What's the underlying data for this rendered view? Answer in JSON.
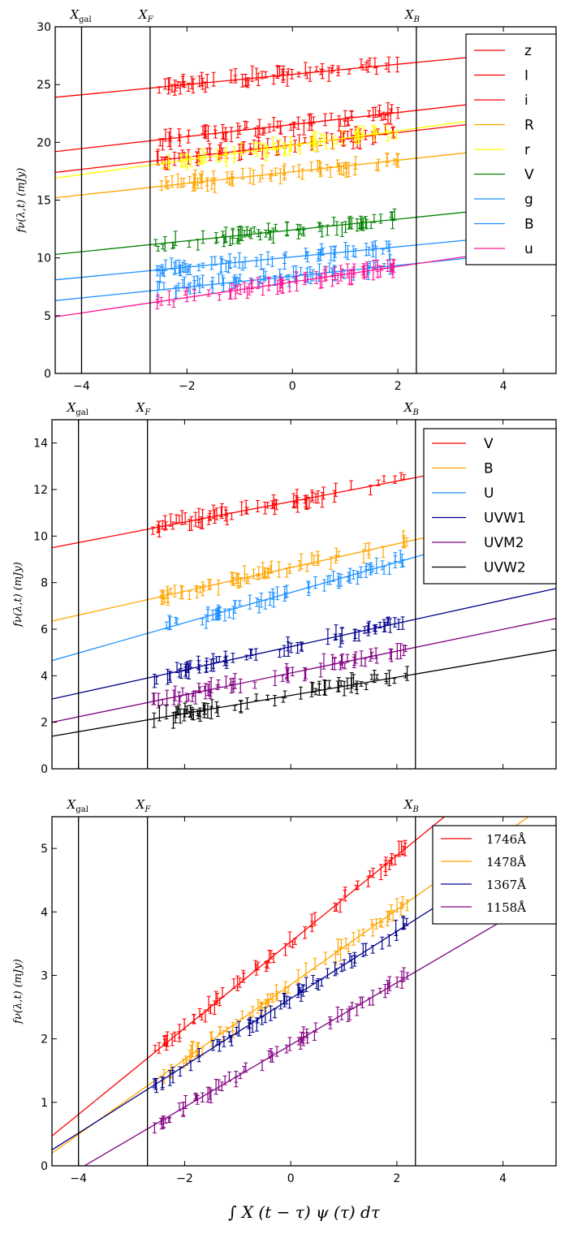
{
  "chart_data": [
    {
      "type": "line",
      "ylabel": "f_ν(λ,t) (mJy)",
      "xlim": [
        -4.5,
        5
      ],
      "ylim": [
        0,
        30
      ],
      "xticks": [
        "−4",
        "−2",
        "0",
        "2",
        "4"
      ],
      "yticks": [
        "0",
        "5",
        "10",
        "15",
        "20",
        "25",
        "30"
      ],
      "vlines": [
        {
          "x": -4.0,
          "label": "X_gal"
        },
        {
          "x": -2.7,
          "label": "X_F"
        },
        {
          "x": 2.35,
          "label": "X_B"
        }
      ],
      "legend_position": "top-right",
      "series": [
        {
          "name": "z",
          "color": "#ff0000",
          "y_at_xmin": 23.9,
          "slope": 0.44,
          "data_x": [
            -2.6,
            2.0
          ],
          "data_y": [
            24.8,
            27.0
          ]
        },
        {
          "name": "I",
          "color": "#ff0000",
          "y_at_xmin": 19.2,
          "slope": 0.52,
          "data_x": [
            -2.6,
            2.0
          ],
          "data_y": [
            20.0,
            22.6
          ]
        },
        {
          "name": "i",
          "color": "#ff0000",
          "y_at_xmin": 17.4,
          "slope": 0.53,
          "data_x": [
            -2.6,
            2.0
          ],
          "data_y": [
            18.3,
            20.9
          ]
        },
        {
          "name": "R",
          "color": "#ffa500",
          "y_at_xmin": 15.2,
          "slope": 0.5,
          "data_x": [
            -2.6,
            2.0
          ],
          "data_y": [
            16.2,
            19.7
          ]
        },
        {
          "name": "r",
          "color": "#ffff00",
          "y_at_xmin": 16.9,
          "slope": 0.63,
          "data_x": [
            -2.6,
            2.0
          ],
          "data_y": [
            17.9,
            21.3
          ]
        },
        {
          "name": "V",
          "color": "#008000",
          "y_at_xmin": 10.3,
          "slope": 0.47,
          "data_x": [
            -2.6,
            2.0
          ],
          "data_y": [
            11.3,
            14.4
          ]
        },
        {
          "name": "g",
          "color": "#1e90ff",
          "y_at_xmin": 8.1,
          "slope": 0.44,
          "data_x": [
            -2.6,
            2.0
          ],
          "data_y": [
            9.0,
            11.9
          ]
        },
        {
          "name": "B",
          "color": "#1e90ff",
          "y_at_xmin": 6.3,
          "slope": 0.47,
          "data_x": [
            -2.6,
            2.0
          ],
          "data_y": [
            7.3,
            10.4
          ]
        },
        {
          "name": "u",
          "color": "#ff1493",
          "y_at_xmin": 4.9,
          "slope": 0.67,
          "data_x": [
            -2.6,
            2.0
          ],
          "data_y": [
            6.6,
            10.3
          ]
        }
      ]
    },
    {
      "type": "line",
      "ylabel": "f_ν(λ,t) (mJy)",
      "xlim": [
        -4.5,
        5
      ],
      "ylim": [
        0,
        15
      ],
      "xticks": [],
      "yticks": [
        "0",
        "2",
        "4",
        "6",
        "8",
        "10",
        "12",
        "14"
      ],
      "vlines": [
        {
          "x": -4.0,
          "label": "X_gal"
        },
        {
          "x": -2.7,
          "label": "X_F"
        },
        {
          "x": 2.35,
          "label": "X_B"
        }
      ],
      "legend_position": "top-right",
      "series": [
        {
          "name": "V",
          "color": "#ff0000",
          "y_at_xmin": 9.5,
          "slope": 0.44,
          "data_x": [
            -2.6,
            2.2
          ],
          "data_y": [
            10.8,
            13.3
          ]
        },
        {
          "name": "B",
          "color": "#ffa500",
          "y_at_xmin": 6.35,
          "slope": 0.51,
          "data_x": [
            -2.6,
            2.2
          ],
          "data_y": [
            7.8,
            10.9
          ]
        },
        {
          "name": "U",
          "color": "#1e90ff",
          "y_at_xmin": 4.65,
          "slope": 0.65,
          "data_x": [
            -2.6,
            2.2
          ],
          "data_y": [
            6.5,
            10.3
          ]
        },
        {
          "name": "UVW1",
          "color": "#00008b",
          "y_at_xmin": 3.0,
          "slope": 0.5,
          "data_x": [
            -2.6,
            2.2
          ],
          "data_y": [
            4.4,
            7.3
          ]
        },
        {
          "name": "UVM2",
          "color": "#800080",
          "y_at_xmin": 2.0,
          "slope": 0.47,
          "data_x": [
            -2.6,
            2.2
          ],
          "data_y": [
            3.3,
            6.3
          ]
        },
        {
          "name": "UVW2",
          "color": "#000000",
          "y_at_xmin": 1.4,
          "slope": 0.39,
          "data_x": [
            -2.6,
            2.2
          ],
          "data_y": [
            2.5,
            5.0
          ]
        }
      ]
    },
    {
      "type": "line",
      "ylabel": "f_ν(λ,t) (mJy)",
      "xlabel": "∫ X (t − τ) ψ (τ) dτ",
      "xlim": [
        -4.5,
        5
      ],
      "ylim": [
        0,
        5.5
      ],
      "xticks": [
        "−4",
        "−2",
        "0",
        "2",
        "4"
      ],
      "yticks": [
        "0",
        "1",
        "2",
        "3",
        "4",
        "5"
      ],
      "vlines": [
        {
          "x": -4.0,
          "label": "X_gal"
        },
        {
          "x": -2.7,
          "label": "X_F"
        },
        {
          "x": 2.35,
          "label": "X_B"
        }
      ],
      "legend_position": "top-right",
      "series": [
        {
          "name": "1746Å",
          "color": "#ff0000",
          "y_at_xmin": 0.47,
          "slope": 0.68,
          "data_x": [
            -2.6,
            2.2
          ],
          "data_y": [
            1.8,
            5.0
          ]
        },
        {
          "name": "1478Å",
          "color": "#ffa500",
          "y_at_xmin": 0.2,
          "slope": 0.59,
          "data_x": [
            -2.6,
            2.2
          ],
          "data_y": [
            1.35,
            4.1
          ]
        },
        {
          "name": "1367Å",
          "color": "#00008b",
          "y_at_xmin": 0.25,
          "slope": 0.53,
          "data_x": [
            -2.6,
            2.2
          ],
          "data_y": [
            1.35,
            3.9
          ]
        },
        {
          "name": "1158Å",
          "color": "#800080",
          "y_at_xmin": -0.3,
          "slope": 0.49,
          "data_x": [
            -2.6,
            2.2
          ],
          "data_y": [
            0.85,
            3.1
          ]
        }
      ]
    }
  ]
}
